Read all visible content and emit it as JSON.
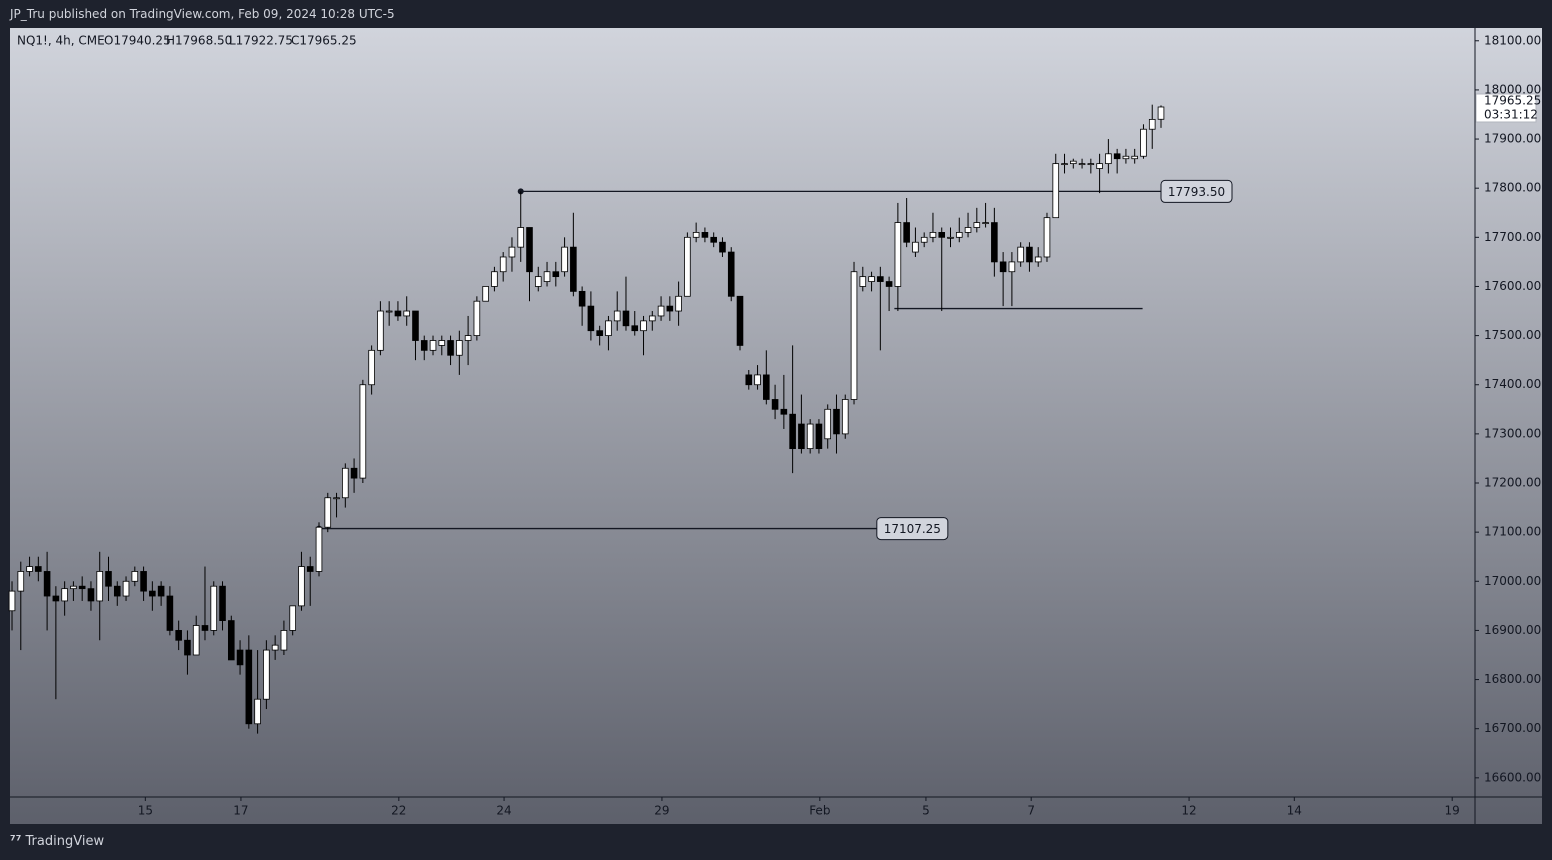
{
  "header": {
    "title": "JP_Tru published on TradingView.com, Feb 09, 2024 10:28 UTC-5",
    "symbol": "NQ1!, 4h, CME",
    "open": "O17940.25",
    "high": "H17968.50",
    "low": "L17922.75",
    "close": "C17965.25"
  },
  "chart_data": {
    "type": "candlestick",
    "color_up": "#ffffff",
    "color_down": "#000000",
    "ylim": [
      16561,
      18126
    ],
    "yticks": [
      {
        "value": 16600,
        "label": "16600.00"
      },
      {
        "value": 16700,
        "label": "16700.00"
      },
      {
        "value": 16800,
        "label": "16800.00"
      },
      {
        "value": 16900,
        "label": "16900.00"
      },
      {
        "value": 17000,
        "label": "17000.00"
      },
      {
        "value": 17100,
        "label": "17100.00"
      },
      {
        "value": 17200,
        "label": "17200.00"
      },
      {
        "value": 17300,
        "label": "17300.00"
      },
      {
        "value": 17400,
        "label": "17400.00"
      },
      {
        "value": 17500,
        "label": "17500.00"
      },
      {
        "value": 17600,
        "label": "17600.00"
      },
      {
        "value": 17700,
        "label": "17700.00"
      },
      {
        "value": 17800,
        "label": "17800.00"
      },
      {
        "value": 17900,
        "label": "17900.00"
      },
      {
        "value": 18000,
        "label": "18000.00"
      },
      {
        "value": 18100,
        "label": "18100.00"
      }
    ],
    "xlim": [
      -0.23,
      166.8
    ],
    "xticks": [
      {
        "value": 15.2,
        "label": "15"
      },
      {
        "value": 26.1,
        "label": "17"
      },
      {
        "value": 44.1,
        "label": "22"
      },
      {
        "value": 56.1,
        "label": "24"
      },
      {
        "value": 74.1,
        "label": "29"
      },
      {
        "value": 92.1,
        "label": "Feb"
      },
      {
        "value": 104.2,
        "label": "5"
      },
      {
        "value": 116.2,
        "label": "7"
      },
      {
        "value": 134.2,
        "label": "12"
      },
      {
        "value": 146.2,
        "label": "14"
      },
      {
        "value": 164.2,
        "label": "19"
      }
    ],
    "candles": [
      [
        16940,
        17000,
        16900,
        16980
      ],
      [
        16980,
        17040,
        16860,
        17020
      ],
      [
        17020,
        17050,
        17010,
        17030
      ],
      [
        17030,
        17050,
        17000,
        17020
      ],
      [
        17020,
        17060,
        16900,
        16970
      ],
      [
        16970,
        16990,
        16760,
        16960
      ],
      [
        16960,
        17000,
        16930,
        16985
      ],
      [
        16985,
        17000,
        16960,
        16990
      ],
      [
        16990,
        17010,
        16960,
        16985
      ],
      [
        16985,
        17000,
        16940,
        16960
      ],
      [
        16960,
        17060,
        16880,
        17020
      ],
      [
        17020,
        17050,
        16960,
        16990
      ],
      [
        16990,
        17000,
        16950,
        16970
      ],
      [
        16970,
        17010,
        16960,
        17000
      ],
      [
        17000,
        17030,
        16990,
        17020
      ],
      [
        17020,
        17030,
        16960,
        16980
      ],
      [
        16980,
        17000,
        16940,
        16970
      ],
      [
        16990,
        17000,
        16950,
        16970
      ],
      [
        16970,
        16990,
        16890,
        16900
      ],
      [
        16900,
        16920,
        16860,
        16880
      ],
      [
        16880,
        16900,
        16810,
        16850
      ],
      [
        16850,
        16930,
        16850,
        16910
      ],
      [
        16910,
        17030,
        16880,
        16900
      ],
      [
        16900,
        17000,
        16890,
        16990
      ],
      [
        16990,
        17000,
        16900,
        16920
      ],
      [
        16920,
        16930,
        16840,
        16840
      ],
      [
        16860,
        16880,
        16810,
        16830
      ],
      [
        16860,
        16890,
        16700,
        16710
      ],
      [
        16710,
        16860,
        16690,
        16760
      ],
      [
        16760,
        16880,
        16740,
        16860
      ],
      [
        16860,
        16890,
        16840,
        16870
      ],
      [
        16860,
        16920,
        16850,
        16900
      ],
      [
        16900,
        16950,
        16890,
        16950
      ],
      [
        16950,
        17060,
        16940,
        17030
      ],
      [
        17030,
        17050,
        16950,
        17020
      ],
      [
        17020,
        17120,
        17010,
        17110
      ],
      [
        17110,
        17180,
        17100,
        17170
      ],
      [
        17170,
        17180,
        17130,
        17170
      ],
      [
        17170,
        17240,
        17150,
        17230
      ],
      [
        17230,
        17250,
        17180,
        17210
      ],
      [
        17210,
        17410,
        17200,
        17400
      ],
      [
        17400,
        17480,
        17380,
        17470
      ],
      [
        17470,
        17570,
        17460,
        17550
      ],
      [
        17550,
        17570,
        17520,
        17550
      ],
      [
        17550,
        17570,
        17530,
        17540
      ],
      [
        17540,
        17580,
        17520,
        17550
      ],
      [
        17550,
        17550,
        17450,
        17490
      ],
      [
        17490,
        17500,
        17450,
        17470
      ],
      [
        17470,
        17500,
        17460,
        17490
      ],
      [
        17480,
        17500,
        17460,
        17490
      ],
      [
        17490,
        17500,
        17440,
        17460
      ],
      [
        17460,
        17510,
        17420,
        17490
      ],
      [
        17490,
        17540,
        17440,
        17500
      ],
      [
        17500,
        17580,
        17490,
        17570
      ],
      [
        17570,
        17600,
        17570,
        17600
      ],
      [
        17600,
        17640,
        17590,
        17630
      ],
      [
        17630,
        17670,
        17610,
        17660
      ],
      [
        17660,
        17700,
        17630,
        17680
      ],
      [
        17680,
        17793.5,
        17650,
        17720
      ],
      [
        17720,
        17720,
        17570,
        17630
      ],
      [
        17600,
        17640,
        17590,
        17620
      ],
      [
        17610,
        17650,
        17600,
        17630
      ],
      [
        17630,
        17650,
        17600,
        17620
      ],
      [
        17630,
        17700,
        17620,
        17680
      ],
      [
        17680,
        17750,
        17580,
        17590
      ],
      [
        17590,
        17600,
        17520,
        17560
      ],
      [
        17560,
        17590,
        17490,
        17510
      ],
      [
        17510,
        17520,
        17480,
        17500
      ],
      [
        17500,
        17540,
        17470,
        17530
      ],
      [
        17530,
        17590,
        17510,
        17550
      ],
      [
        17550,
        17620,
        17510,
        17520
      ],
      [
        17520,
        17550,
        17500,
        17510
      ],
      [
        17510,
        17540,
        17460,
        17530
      ],
      [
        17530,
        17550,
        17510,
        17540
      ],
      [
        17540,
        17580,
        17530,
        17560
      ],
      [
        17560,
        17580,
        17530,
        17550
      ],
      [
        17550,
        17610,
        17520,
        17580
      ],
      [
        17580,
        17710,
        17580,
        17700
      ],
      [
        17700,
        17730,
        17690,
        17710
      ],
      [
        17710,
        17720,
        17690,
        17700
      ],
      [
        17700,
        17710,
        17680,
        17690
      ],
      [
        17690,
        17700,
        17660,
        17670
      ],
      [
        17670,
        17680,
        17570,
        17580
      ],
      [
        17580,
        17580,
        17470,
        17480
      ],
      [
        17420,
        17430,
        17390,
        17400
      ],
      [
        17400,
        17440,
        17390,
        17420
      ],
      [
        17420,
        17470,
        17360,
        17370
      ],
      [
        17370,
        17400,
        17330,
        17350
      ],
      [
        17350,
        17420,
        17310,
        17340
      ],
      [
        17340,
        17480,
        17220,
        17270
      ],
      [
        17320,
        17380,
        17260,
        17270
      ],
      [
        17270,
        17330,
        17260,
        17320
      ],
      [
        17320,
        17330,
        17260,
        17270
      ],
      [
        17290,
        17360,
        17270,
        17350
      ],
      [
        17350,
        17380,
        17260,
        17300
      ],
      [
        17300,
        17380,
        17290,
        17370
      ],
      [
        17370,
        17650,
        17360,
        17630
      ],
      [
        17600,
        17640,
        17590,
        17620
      ],
      [
        17610,
        17630,
        17590,
        17620
      ],
      [
        17620,
        17640,
        17470,
        17610
      ],
      [
        17610,
        17620,
        17550,
        17600
      ],
      [
        17600,
        17770,
        17550,
        17730
      ],
      [
        17730,
        17780,
        17680,
        17690
      ],
      [
        17670,
        17720,
        17660,
        17690
      ],
      [
        17690,
        17710,
        17680,
        17700
      ],
      [
        17700,
        17750,
        17690,
        17710
      ],
      [
        17710,
        17720,
        17550,
        17700
      ],
      [
        17700,
        17720,
        17680,
        17700
      ],
      [
        17700,
        17740,
        17690,
        17710
      ],
      [
        17710,
        17750,
        17700,
        17720
      ],
      [
        17720,
        17760,
        17710,
        17730
      ],
      [
        17730,
        17770,
        17720,
        17730
      ],
      [
        17730,
        17760,
        17620,
        17650
      ],
      [
        17650,
        17670,
        17560,
        17630
      ],
      [
        17630,
        17670,
        17560,
        17650
      ],
      [
        17650,
        17690,
        17640,
        17680
      ],
      [
        17680,
        17690,
        17630,
        17650
      ],
      [
        17650,
        17680,
        17640,
        17660
      ],
      [
        17660,
        17750,
        17650,
        17740
      ],
      [
        17740,
        17870,
        17740,
        17850
      ],
      [
        17850,
        17870,
        17830,
        17850
      ],
      [
        17850,
        17860,
        17840,
        17855
      ],
      [
        17850,
        17860,
        17840,
        17850
      ],
      [
        17850,
        17860,
        17830,
        17850
      ],
      [
        17840,
        17870,
        17790,
        17850
      ],
      [
        17850,
        17900,
        17830,
        17870
      ],
      [
        17870,
        17880,
        17830,
        17860
      ],
      [
        17860,
        17880,
        17850,
        17865
      ],
      [
        17860,
        17880,
        17850,
        17865
      ],
      [
        17865,
        17930,
        17860,
        17920
      ],
      [
        17920,
        17970,
        17880,
        17940
      ],
      [
        17940.25,
        17968.5,
        17922.75,
        17965.25
      ]
    ],
    "levels": [
      {
        "value": 17793.5,
        "label": "17793.50",
        "from": 58,
        "to": 131
      },
      {
        "value": 17107.25,
        "label": "17107.25",
        "from": 35,
        "to": 98.6
      },
      {
        "value": 17555,
        "from": 100.6,
        "to": 128.9
      }
    ],
    "countdown": "03:31:12"
  },
  "footer": {
    "brand": "TradingView"
  }
}
